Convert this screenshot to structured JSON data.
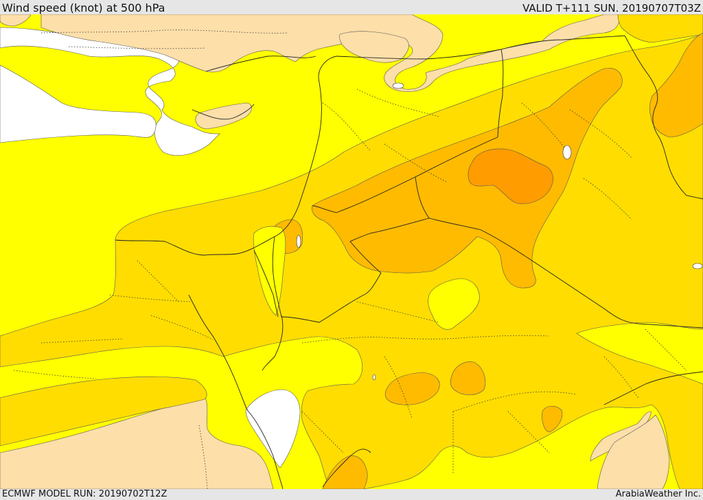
{
  "header": {
    "title": "Wind speed (knot) at 500 hPa",
    "valid_time": "VALID T+111 SUN. 20190707T03Z"
  },
  "footer": {
    "model_run": "ECMWF MODEL RUN: 20190702T12Z",
    "credit": "ArabiaWeather Inc."
  },
  "map": {
    "variable": "Wind speed at 500 hPa",
    "unit": "knot",
    "shading_colors": {
      "calm": "#ffffff",
      "light": "#fddfa9",
      "moderate": "#ffff00",
      "fresh": "#ffdd00",
      "strong": "#ffbb00",
      "very_strong": "#ff9c00"
    },
    "overlays": [
      "coastlines",
      "country-borders",
      "province-borders"
    ]
  }
}
